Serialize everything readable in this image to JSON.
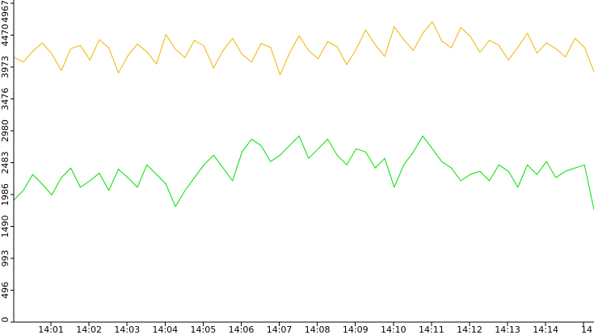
{
  "chart_data": {
    "type": "line",
    "title": "",
    "xlabel": "",
    "ylabel": "",
    "ylim": [
      0,
      4967
    ],
    "y_ticks": [
      "0",
      "496",
      "993",
      "1490",
      "1986",
      "2483",
      "2980",
      "3476",
      "3973",
      "4470",
      "4967"
    ],
    "x_ticks": [
      "14:01",
      "14:02",
      "14:03",
      "14:04",
      "14:05",
      "14:06",
      "14:07",
      "14:08",
      "14:09",
      "14:10",
      "14:11",
      "14:12",
      "14:13",
      "14:14",
      "14"
    ],
    "grid": false,
    "legend": "none",
    "colors": {
      "upper": "#f0b400",
      "lower": "#00e000"
    },
    "series": [
      {
        "key": "upper",
        "x": [
          0,
          0.25,
          0.5,
          0.75,
          1,
          1.25,
          1.5,
          1.75,
          2,
          2.25,
          2.5,
          2.75,
          3,
          3.25,
          3.5,
          3.75,
          4,
          4.25,
          4.5,
          4.75,
          5,
          5.25,
          5.5,
          5.75,
          6,
          6.25,
          6.5,
          6.75,
          7,
          7.25,
          7.5,
          7.75,
          8,
          8.25,
          8.5,
          8.75,
          9,
          9.25,
          9.5,
          9.75,
          10,
          10.25,
          10.5,
          10.75,
          11,
          11.25,
          11.5,
          11.75,
          12,
          12.25,
          12.5,
          12.75,
          13,
          13.25,
          13.5,
          13.75,
          14,
          14.25,
          14.5,
          14.75,
          15,
          15.25
        ],
        "values": [
          4130,
          4050,
          4220,
          4350,
          4180,
          3920,
          4260,
          4310,
          4080,
          4400,
          4270,
          3880,
          4150,
          4330,
          4210,
          4020,
          4480,
          4250,
          4120,
          4390,
          4300,
          3960,
          4230,
          4420,
          4170,
          4050,
          4340,
          4280,
          3850,
          4190,
          4460,
          4230,
          4100,
          4370,
          4290,
          4010,
          4250,
          4550,
          4320,
          4140,
          4600,
          4400,
          4230,
          4500,
          4680,
          4380,
          4270,
          4590,
          4450,
          4200,
          4390,
          4310,
          4080,
          4280,
          4500,
          4190,
          4350,
          4260,
          4130,
          4420,
          4280,
          3900
        ]
      },
      {
        "key": "lower",
        "x": [
          0,
          0.25,
          0.5,
          0.75,
          1,
          1.25,
          1.5,
          1.75,
          2,
          2.25,
          2.5,
          2.75,
          3,
          3.25,
          3.5,
          3.75,
          4,
          4.25,
          4.5,
          4.75,
          5,
          5.25,
          5.5,
          5.75,
          6,
          6.25,
          6.5,
          6.75,
          7,
          7.25,
          7.5,
          7.75,
          8,
          8.25,
          8.5,
          8.75,
          9,
          9.25,
          9.5,
          9.75,
          10,
          10.25,
          10.5,
          10.75,
          11,
          11.25,
          11.5,
          11.75,
          12,
          12.25,
          12.5,
          12.75,
          13,
          13.25,
          13.5,
          13.75,
          14,
          14.25,
          14.5,
          14.75,
          15,
          15.25
        ],
        "values": [
          1900,
          2050,
          2300,
          2150,
          1980,
          2250,
          2400,
          2100,
          2200,
          2320,
          2050,
          2380,
          2250,
          2100,
          2450,
          2300,
          2150,
          1800,
          2050,
          2250,
          2450,
          2600,
          2400,
          2200,
          2650,
          2850,
          2750,
          2500,
          2600,
          2750,
          2900,
          2550,
          2700,
          2850,
          2600,
          2450,
          2700,
          2650,
          2400,
          2550,
          2100,
          2450,
          2650,
          2900,
          2700,
          2500,
          2400,
          2200,
          2300,
          2350,
          2200,
          2450,
          2350,
          2100,
          2450,
          2300,
          2500,
          2250,
          2350,
          2400,
          2450,
          1750
        ]
      }
    ]
  }
}
